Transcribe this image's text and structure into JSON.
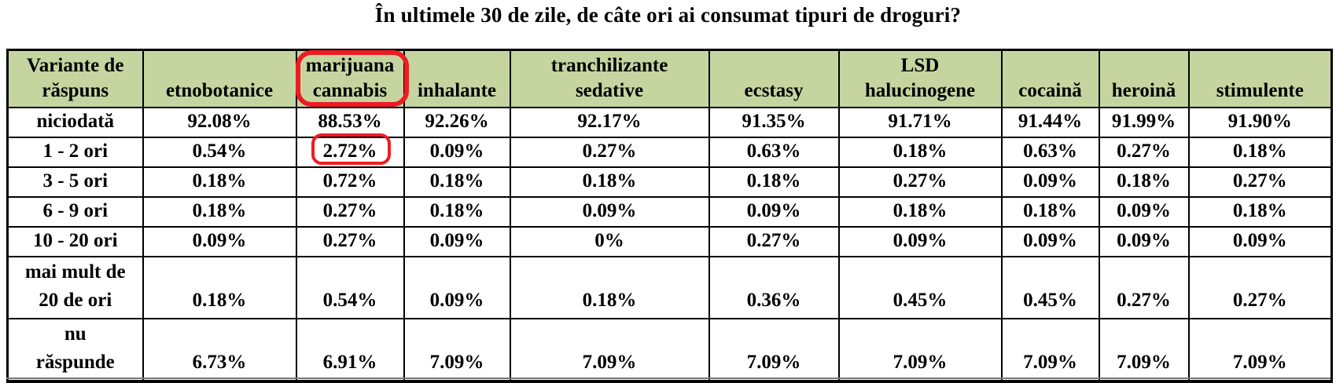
{
  "title": "În ultimele 30 de zile, de câte ori ai consumat tipuri de droguri?",
  "colors": {
    "header_bg": "#c6d5a0",
    "annotation_red": "#ed1c24",
    "border": "#000000"
  },
  "table": {
    "corner_label": "Variante de\nrăspuns",
    "columns": [
      "etnobotanice",
      "marijuana\ncannabis",
      "inhalante",
      "tranchilizante\nsedative",
      "ecstasy",
      "LSD\nhalucinogene",
      "cocaină",
      "heroină",
      "stimulente"
    ],
    "rows": [
      {
        "label": "niciodată",
        "values": [
          "92.08%",
          "88.53%",
          "92.26%",
          "92.17%",
          "91.35%",
          "91.71%",
          "91.44%",
          "91.99%",
          "91.90%"
        ]
      },
      {
        "label": "1 - 2 ori",
        "values": [
          "0.54%",
          "2.72%",
          "0.09%",
          "0.27%",
          "0.63%",
          "0.18%",
          "0.63%",
          "0.27%",
          "0.18%"
        ]
      },
      {
        "label": "3 - 5 ori",
        "values": [
          "0.18%",
          "0.72%",
          "0.18%",
          "0.18%",
          "0.18%",
          "0.27%",
          "0.09%",
          "0.18%",
          "0.27%"
        ]
      },
      {
        "label": "6 - 9 ori",
        "values": [
          "0.18%",
          "0.27%",
          "0.18%",
          "0.09%",
          "0.09%",
          "0.18%",
          "0.18%",
          "0.09%",
          "0.18%"
        ]
      },
      {
        "label": "10 - 20 ori",
        "values": [
          "0.09%",
          "0.27%",
          "0.09%",
          "0%",
          "0.27%",
          "0.09%",
          "0.09%",
          "0.09%",
          "0.09%"
        ]
      },
      {
        "label": "mai mult de\n20 de ori",
        "values": [
          "0.18%",
          "0.54%",
          "0.09%",
          "0.18%",
          "0.36%",
          "0.45%",
          "0.45%",
          "0.27%",
          "0.27%"
        ]
      },
      {
        "label": "nu\nrăspunde",
        "values": [
          "6.73%",
          "6.91%",
          "7.09%",
          "7.09%",
          "7.09%",
          "7.09%",
          "7.09%",
          "7.09%",
          "7.09%"
        ]
      }
    ]
  },
  "annotations": [
    {
      "shape": "red-rounded-rectangle",
      "highlights": "marijuana\ncannabis header cell"
    },
    {
      "shape": "red-rounded-rectangle",
      "highlights": "2.72% value (1 - 2 ori × marijuana cannabis)"
    }
  ]
}
